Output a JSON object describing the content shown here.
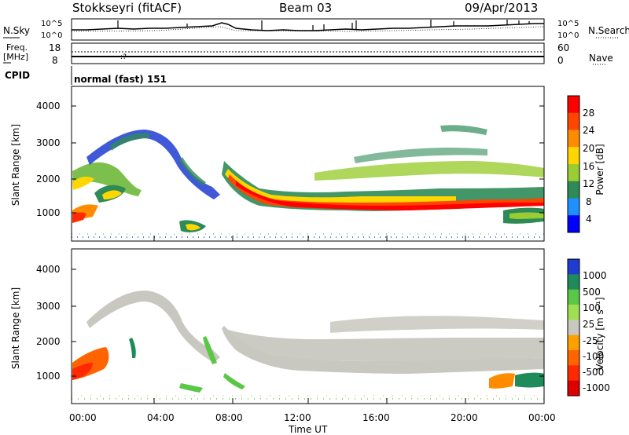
{
  "header": {
    "station": "Stokkseyri (fitACF)",
    "beam": "Beam 03",
    "date": "09/Apr/2013"
  },
  "summary": {
    "nsky_label": "N.Sky",
    "nsky_ticks": [
      "10^5",
      "10^0"
    ],
    "nsearch_label": "N.Search",
    "nsearch_ticks": [
      "10^5",
      "10^0"
    ],
    "freq_label": "Freq.",
    "freq_unit": "[MHz]",
    "freq_ticks": [
      "18",
      "8"
    ],
    "nave_label": "Nave",
    "nave_ticks": [
      "60",
      "0"
    ],
    "cpid_label": "CPID",
    "cpid_value": "normal (fast) 151"
  },
  "chart_data": [
    {
      "type": "heatmap",
      "panel": "power",
      "ylabel": "Slant Range [km]",
      "yticks": [
        "4000",
        "3000",
        "2000",
        "1000"
      ],
      "ylim": [
        200,
        4500
      ],
      "xlim": [
        0,
        24
      ],
      "colorbar_label": "Power [dB]",
      "colorbar_ticks": [
        "28",
        "24",
        "20",
        "16",
        "12",
        "8",
        "4"
      ],
      "colorbar_colors": [
        "#ff0000",
        "#ff4500",
        "#ff8c00",
        "#ffd700",
        "#9acd32",
        "#2e8b57",
        "#1e90ff",
        "#0000ff"
      ]
    },
    {
      "type": "heatmap",
      "panel": "velocity",
      "ylabel": "Slant Range [km]",
      "yticks": [
        "4000",
        "3000",
        "2000",
        "1000"
      ],
      "ylim": [
        200,
        4500
      ],
      "xlim": [
        0,
        24
      ],
      "xlabel": "Time UT",
      "xticks": [
        "00:00",
        "04:00",
        "08:00",
        "12:00",
        "16:00",
        "20:00",
        "00:00"
      ],
      "colorbar_label": "Velocity [m s⁻¹]",
      "colorbar_ticks": [
        "1000",
        "500",
        "100",
        "25",
        "-25",
        "-100",
        "-500",
        "-1000"
      ],
      "colorbar_colors": [
        "#1e3cd2",
        "#1e8c5a",
        "#5ac846",
        "#a0e050",
        "#c8c8c0",
        "#ffa000",
        "#ff6400",
        "#ff2800",
        "#dc0000"
      ]
    }
  ]
}
